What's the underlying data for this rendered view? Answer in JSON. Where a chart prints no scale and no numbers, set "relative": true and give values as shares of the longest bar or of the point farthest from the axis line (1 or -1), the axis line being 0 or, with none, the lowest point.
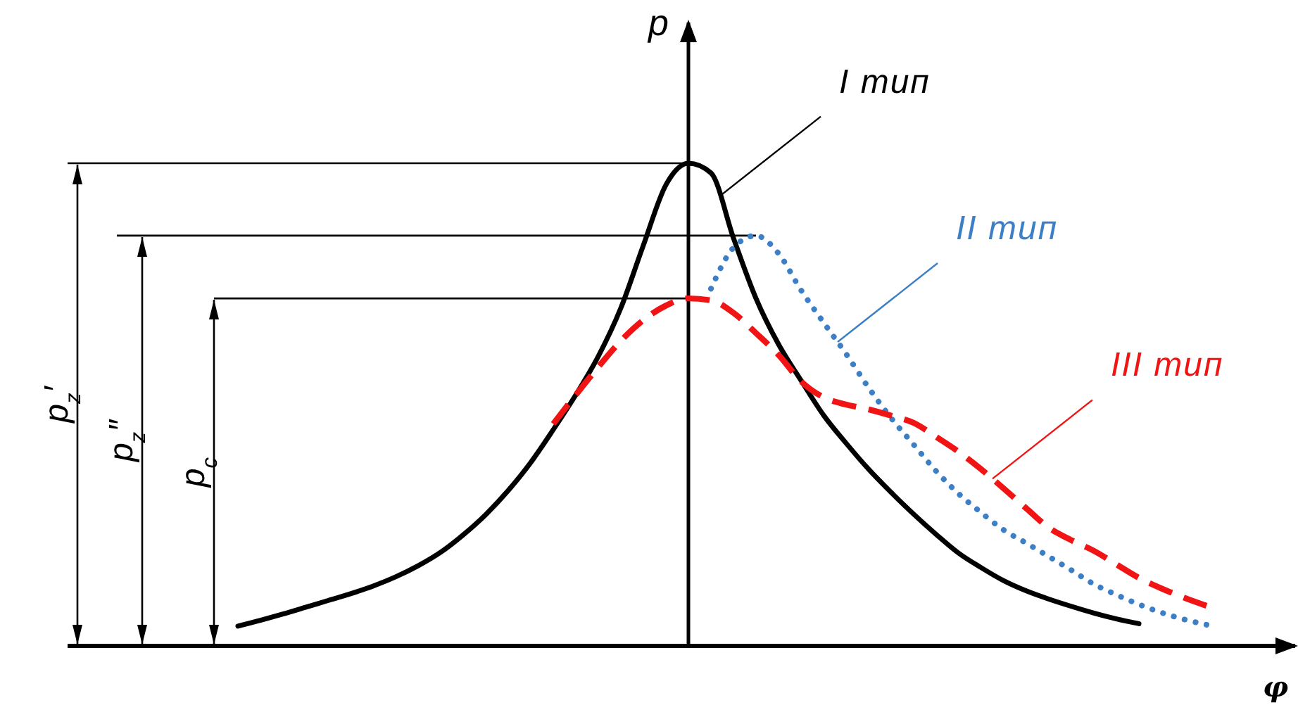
{
  "chart_data": {
    "type": "line",
    "relative": true,
    "xlabel": "φ",
    "ylabel": "p",
    "categories": [
      null,
      null,
      null,
      null,
      null,
      null,
      null,
      null,
      null,
      null,
      null,
      null,
      null,
      null,
      null,
      null,
      null,
      null,
      null,
      null,
      null,
      null,
      null,
      null,
      null,
      null,
      null,
      null,
      null,
      null,
      null,
      null,
      null,
      null,
      null,
      null,
      null,
      null,
      null,
      null,
      null,
      null,
      null,
      null,
      null,
      null,
      null,
      null,
      null,
      null,
      null,
      null,
      null
    ],
    "series": [
      {
        "name": "I тип",
        "color": "#000000",
        "line_style": "solid",
        "values": [
          null,
          null,
          null,
          null,
          null,
          null,
          0.041,
          0.053,
          0.066,
          0.08,
          0.094,
          0.108,
          0.124,
          0.143,
          0.166,
          0.194,
          0.23,
          0.272,
          0.322,
          0.38,
          0.448,
          0.52,
          0.6,
          0.7,
          0.83,
          0.955,
          1,
          0.98,
          0.845,
          0.72,
          0.625,
          0.55,
          0.478,
          0.42,
          0.366,
          0.318,
          0.273,
          0.231,
          0.192,
          0.162,
          0.135,
          0.114,
          0.097,
          0.082,
          0.068,
          0.056,
          0.046,
          null,
          null,
          null,
          null,
          null,
          null
        ]
      },
      {
        "name": "II тип",
        "color": "#3c7fc6",
        "line_style": "dotted",
        "values": [
          null,
          null,
          null,
          null,
          null,
          null,
          null,
          null,
          null,
          null,
          null,
          null,
          null,
          null,
          null,
          null,
          null,
          null,
          null,
          null,
          null,
          null,
          null,
          null,
          null,
          null,
          null,
          0.74,
          0.825,
          0.85,
          0.813,
          0.737,
          0.67,
          0.605,
          0.535,
          0.472,
          0.417,
          0.362,
          0.315,
          0.276,
          0.24,
          0.213,
          0.185,
          0.157,
          0.128,
          0.106,
          0.086,
          0.069,
          0.055,
          0.044,
          null,
          null,
          null
        ]
      },
      {
        "name": "III тип",
        "color": "#f01414",
        "line_style": "dashed",
        "values": [
          null,
          null,
          null,
          null,
          null,
          null,
          null,
          null,
          null,
          null,
          null,
          null,
          null,
          null,
          null,
          null,
          null,
          null,
          null,
          null,
          0.46,
          0.52,
          0.578,
          0.632,
          0.675,
          0.705,
          0.72,
          0.716,
          0.69,
          0.648,
          0.603,
          0.548,
          0.515,
          0.5,
          0.49,
          0.477,
          0.462,
          0.433,
          0.402,
          0.366,
          0.326,
          0.285,
          0.245,
          0.219,
          0.197,
          0.169,
          0.141,
          0.119,
          0.1,
          0.083,
          null,
          null,
          null
        ]
      }
    ],
    "ref_lines": [
      {
        "axis": "y",
        "value": 1
      },
      {
        "axis": "y",
        "value": 0.85
      },
      {
        "axis": "y",
        "value": 0.72
      }
    ],
    "annotations": [
      "p$_{z}$′",
      "p$_{z}$″",
      "p$_{c}$"
    ]
  }
}
